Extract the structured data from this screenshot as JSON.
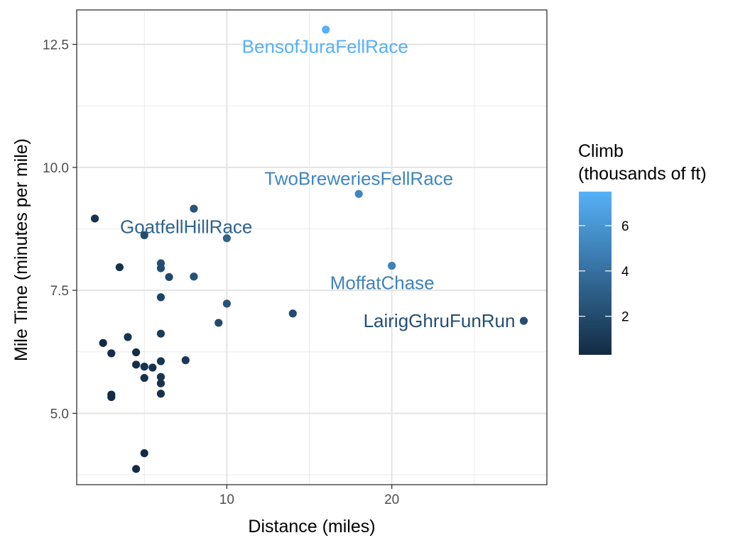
{
  "chart_data": {
    "type": "scatter",
    "xlabel": "Distance (miles)",
    "ylabel": "Mile Time (minutes per mile)",
    "xlim": [
      0.9,
      29.4
    ],
    "ylim": [
      3.55,
      13.2
    ],
    "x_ticks": [
      10,
      20
    ],
    "x_minor_ticks": [
      5,
      15,
      25
    ],
    "y_ticks": [
      5.0,
      7.5,
      10.0,
      12.5
    ],
    "y_tick_labels": [
      "5.0",
      "7.5",
      "10.0",
      "12.5"
    ],
    "y_minor_ticks": [
      3.75,
      6.25,
      8.75,
      11.25
    ],
    "grid": true,
    "legend": {
      "title_lines": [
        "Climb",
        "(thousands of ft)"
      ],
      "ticks": [
        2,
        4,
        6
      ],
      "range": [
        0.3,
        7.5
      ],
      "color_low": "#132B43",
      "color_high": "#56B1F7",
      "position": "right"
    },
    "points": [
      {
        "x": 2.0,
        "y": 8.96,
        "climb": 0.65
      },
      {
        "x": 2.5,
        "y": 6.43,
        "climb": 0.3
      },
      {
        "x": 3.0,
        "y": 6.22,
        "climb": 0.5
      },
      {
        "x": 3.0,
        "y": 5.38,
        "climb": 0.3
      },
      {
        "x": 3.0,
        "y": 5.33,
        "climb": 0.35
      },
      {
        "x": 3.5,
        "y": 7.97,
        "climb": 0.6
      },
      {
        "x": 4.0,
        "y": 6.55,
        "climb": 0.8
      },
      {
        "x": 4.5,
        "y": 6.24,
        "climb": 0.45
      },
      {
        "x": 4.5,
        "y": 5.99,
        "climb": 0.5
      },
      {
        "x": 4.5,
        "y": 3.87,
        "climb": 0.2
      },
      {
        "x": 5.0,
        "y": 8.62,
        "climb": 2.0
      },
      {
        "x": 5.0,
        "y": 5.95,
        "climb": 0.8
      },
      {
        "x": 5.0,
        "y": 5.72,
        "climb": 0.6
      },
      {
        "x": 5.0,
        "y": 4.19,
        "climb": 0.2
      },
      {
        "x": 5.5,
        "y": 5.93,
        "climb": 0.7
      },
      {
        "x": 6.0,
        "y": 8.05,
        "climb": 2.2
      },
      {
        "x": 6.0,
        "y": 7.95,
        "climb": 2.0
      },
      {
        "x": 6.0,
        "y": 7.36,
        "climb": 1.6
      },
      {
        "x": 6.0,
        "y": 6.62,
        "climb": 1.2
      },
      {
        "x": 6.0,
        "y": 6.06,
        "climb": 0.9
      },
      {
        "x": 6.0,
        "y": 5.74,
        "climb": 0.8
      },
      {
        "x": 6.0,
        "y": 5.61,
        "climb": 0.7
      },
      {
        "x": 6.0,
        "y": 5.4,
        "climb": 0.6
      },
      {
        "x": 6.5,
        "y": 7.77,
        "climb": 1.8
      },
      {
        "x": 7.5,
        "y": 6.08,
        "climb": 1.0
      },
      {
        "x": 8.0,
        "y": 9.16,
        "climb": 2.5
      },
      {
        "x": 8.0,
        "y": 7.78,
        "climb": 2.4
      },
      {
        "x": 9.5,
        "y": 6.84,
        "climb": 2.0
      },
      {
        "x": 10.0,
        "y": 8.56,
        "climb": 3.3
      },
      {
        "x": 10.0,
        "y": 7.23,
        "climb": 2.5
      },
      {
        "x": 14.0,
        "y": 7.03,
        "climb": 2.0
      },
      {
        "x": 16.0,
        "y": 12.8,
        "climb": 7.5
      },
      {
        "x": 18.0,
        "y": 9.46,
        "climb": 5.2
      },
      {
        "x": 20.0,
        "y": 8.0,
        "climb": 5.0
      },
      {
        "x": 28.0,
        "y": 6.88,
        "climb": 2.2
      }
    ],
    "labels": [
      {
        "text": "BensofJuraFellRace",
        "x": 16.0,
        "y": 12.8,
        "climb": 7.5,
        "anchor": "middle",
        "dx": -1,
        "dy": 24
      },
      {
        "text": "TwoBreweriesFellRace",
        "x": 18.0,
        "y": 9.46,
        "climb": 5.2,
        "anchor": "middle",
        "dx": 0,
        "dy": -22
      },
      {
        "text": "GoatfellHillRace",
        "x": 10.0,
        "y": 8.56,
        "climb": 3.3,
        "anchor": "end",
        "dx": 36,
        "dy": -16
      },
      {
        "text": "MoffatChase",
        "x": 20.0,
        "y": 8.0,
        "climb": 5.0,
        "anchor": "end",
        "dx": 60,
        "dy": 24
      },
      {
        "text": "LairigGhruFunRun",
        "x": 28.0,
        "y": 6.88,
        "climb": 2.2,
        "anchor": "end",
        "dx": -12,
        "dy": 0
      }
    ]
  }
}
